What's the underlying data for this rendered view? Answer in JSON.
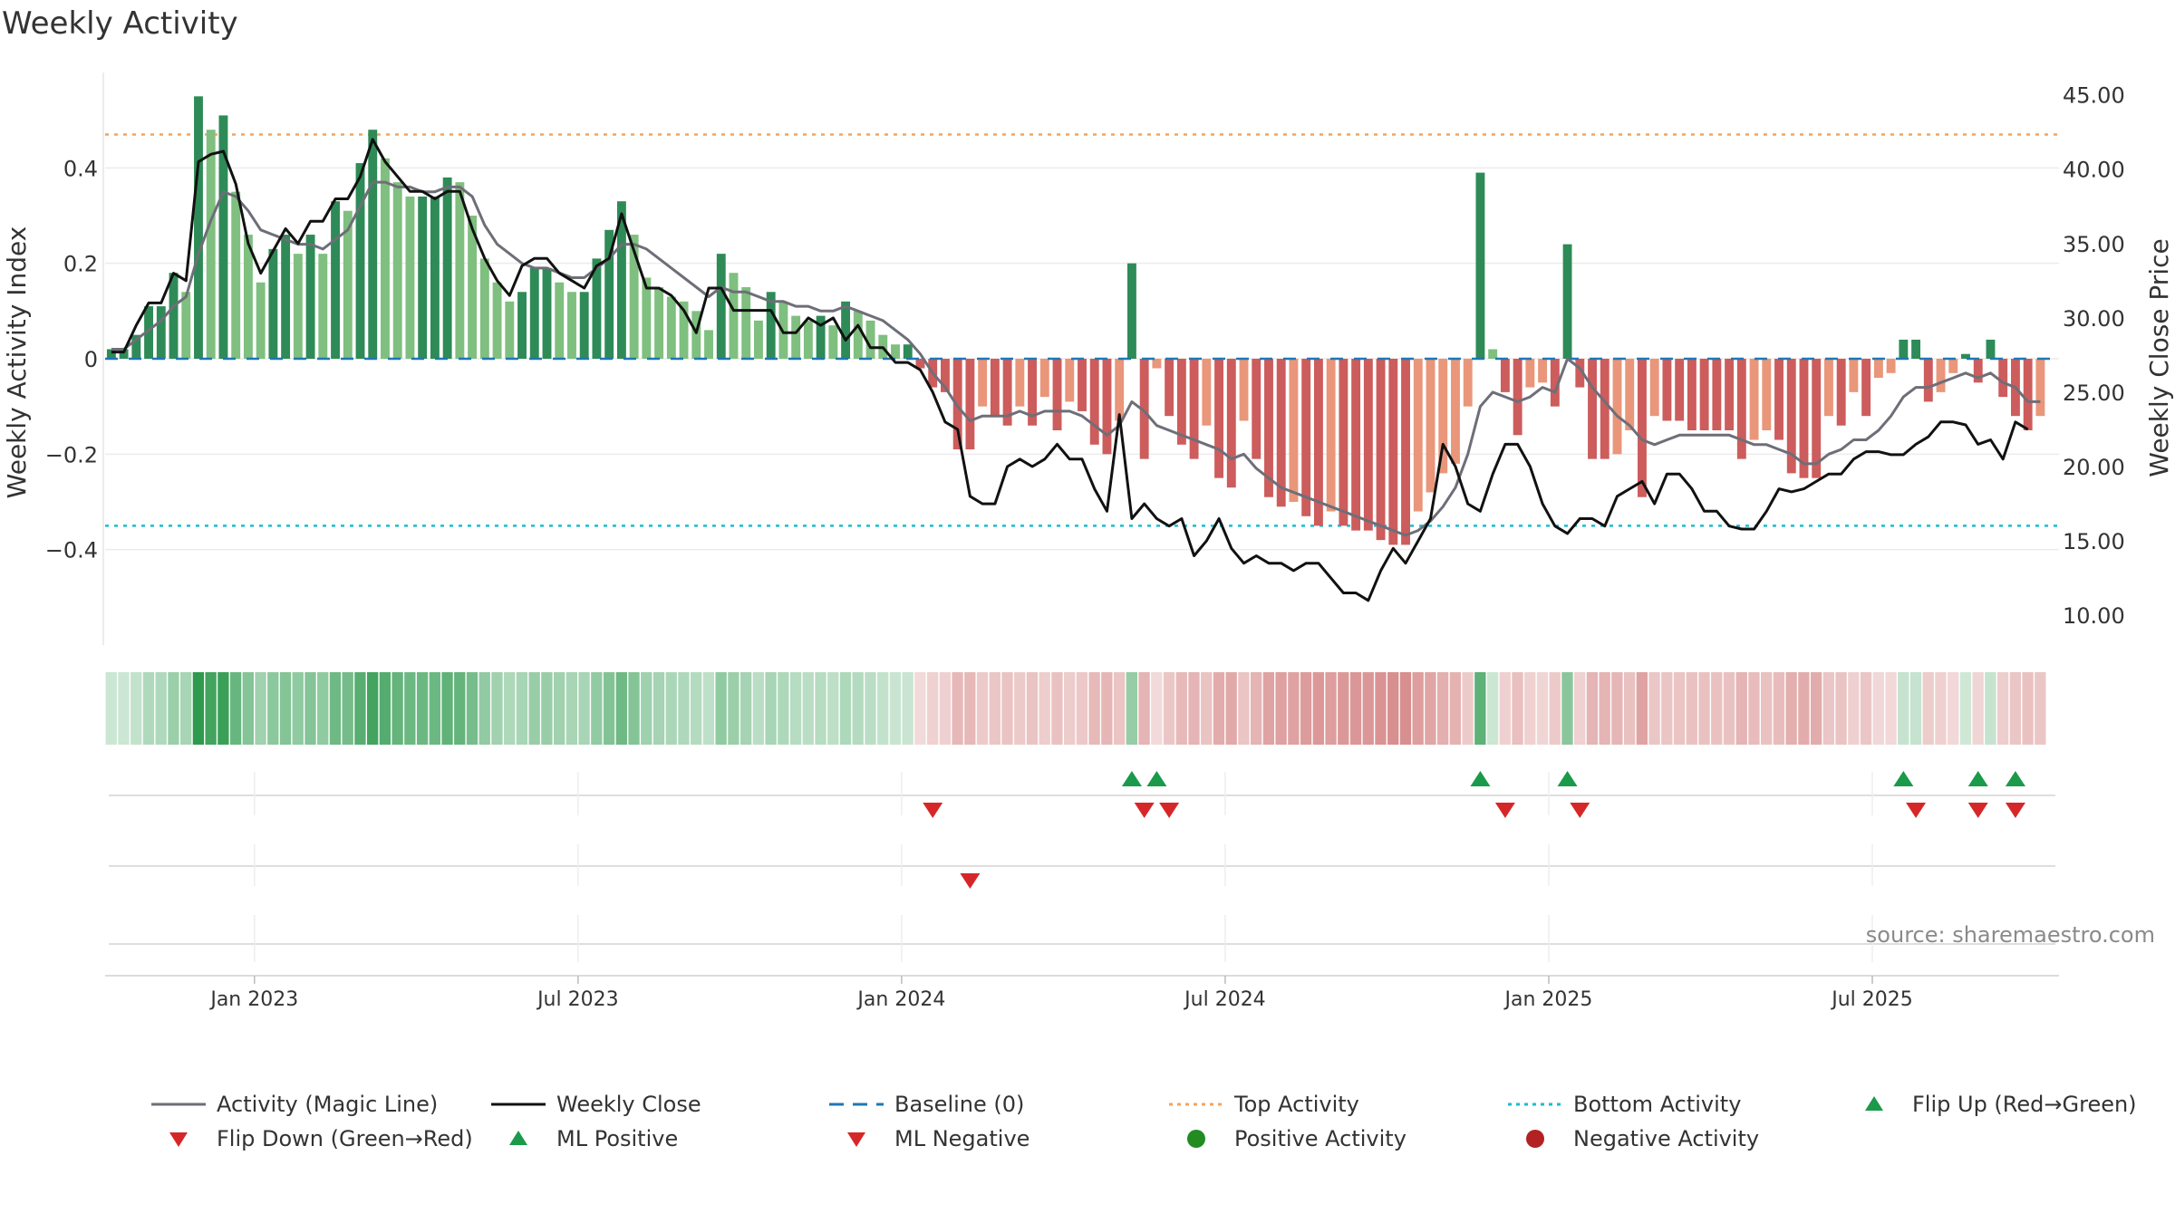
{
  "title": "Weekly Activity",
  "source": "source: sharemaestro.com",
  "colors": {
    "pos_dark": "#2e8b57",
    "pos_light": "#7fbf7f",
    "neg_dark": "#cd5c5c",
    "neg_light": "#e9967a",
    "magic": "#6e6e78",
    "close": "#111111",
    "baseline": "#1f77b4",
    "top": "#f4a460",
    "bottom": "#17becf",
    "flip_up": "#1a9a4a",
    "flip_down": "#d62728",
    "pos_dot": "#228b22",
    "neg_dot": "#b22222"
  },
  "legend": {
    "magic": "Activity (Magic Line)",
    "close": "Weekly Close",
    "baseline": "Baseline (0)",
    "top": "Top Activity",
    "bottom": "Bottom Activity",
    "flip_up": "Flip Up (Red→Green)",
    "flip_down": "Flip Down (Green→Red)",
    "ml_pos": "ML Positive",
    "ml_neg": "ML Negative",
    "pos_act": "Positive Activity",
    "neg_act": "Negative Activity"
  },
  "chart_data": {
    "type": "bar",
    "title": "Weekly Activity",
    "ylabel": "Weekly Activity Index",
    "y2label": "Weekly Close Price",
    "ylim": [
      -0.6,
      0.6
    ],
    "y2lim": [
      8.0,
      46.5
    ],
    "yticks": [
      0.4,
      0.2,
      0,
      -0.2,
      -0.4
    ],
    "ytick_labels": [
      "0.4",
      "0.2",
      "0",
      "−0.2",
      "−0.4"
    ],
    "y2ticks": [
      45,
      40,
      35,
      30,
      25,
      20,
      15,
      10
    ],
    "y2tick_labels": [
      "45.00",
      "40.00",
      "35.00",
      "30.00",
      "25.00",
      "20.00",
      "15.00",
      "10.00"
    ],
    "top_activity": 0.47,
    "bottom_activity": -0.35,
    "baseline": 0,
    "x_start": "2022-10-10",
    "x_end": "2025-10-06",
    "weeks": 157,
    "xticks": [
      {
        "week": 12,
        "label": "Jan 2023"
      },
      {
        "week": 38,
        "label": "Jul 2023"
      },
      {
        "week": 64,
        "label": "Jan 2024"
      },
      {
        "week": 90,
        "label": "Jul 2024"
      },
      {
        "week": 116,
        "label": "Jan 2025"
      },
      {
        "week": 142,
        "label": "Jul 2025"
      }
    ],
    "activity": [
      0.02,
      0.02,
      0.05,
      0.11,
      0.11,
      0.18,
      0.14,
      0.55,
      0.48,
      0.51,
      0.35,
      0.26,
      0.16,
      0.23,
      0.26,
      0.22,
      0.26,
      0.22,
      0.33,
      0.31,
      0.41,
      0.48,
      0.42,
      0.37,
      0.34,
      0.34,
      0.34,
      0.38,
      0.37,
      0.3,
      0.21,
      0.16,
      0.12,
      0.14,
      0.19,
      0.19,
      0.16,
      0.14,
      0.14,
      0.21,
      0.27,
      0.33,
      0.26,
      0.17,
      0.15,
      0.13,
      0.12,
      0.1,
      0.06,
      0.22,
      0.18,
      0.15,
      0.08,
      0.14,
      0.12,
      0.09,
      0.08,
      0.09,
      0.07,
      0.12,
      0.1,
      0.08,
      0.05,
      0.03,
      0.03,
      -0.02,
      -0.06,
      -0.07,
      -0.19,
      -0.19,
      -0.1,
      -0.12,
      -0.14,
      -0.1,
      -0.14,
      -0.08,
      -0.15,
      -0.09,
      -0.11,
      -0.18,
      -0.2,
      -0.13,
      0.2,
      -0.21,
      -0.02,
      -0.12,
      -0.18,
      -0.21,
      -0.14,
      -0.25,
      -0.27,
      -0.13,
      -0.21,
      -0.29,
      -0.31,
      -0.3,
      -0.33,
      -0.35,
      -0.32,
      -0.35,
      -0.36,
      -0.36,
      -0.38,
      -0.39,
      -0.39,
      -0.32,
      -0.28,
      -0.24,
      -0.22,
      -0.1,
      0.39,
      0.02,
      -0.07,
      -0.16,
      -0.06,
      -0.05,
      -0.1,
      0.24,
      -0.06,
      -0.21,
      -0.21,
      -0.2,
      -0.15,
      -0.29,
      -0.12,
      -0.13,
      -0.13,
      -0.15,
      -0.15,
      -0.15,
      -0.15,
      -0.21,
      -0.17,
      -0.15,
      -0.17,
      -0.24,
      -0.25,
      -0.25,
      -0.12,
      -0.14,
      -0.07,
      -0.12,
      -0.04,
      -0.03,
      0.04,
      0.04,
      -0.09,
      -0.07,
      -0.03,
      0.01,
      -0.05,
      0.04,
      -0.08,
      -0.12,
      -0.15,
      -0.12
    ],
    "magic_line": [
      0.02,
      0.02,
      0.04,
      0.06,
      0.08,
      0.11,
      0.13,
      0.22,
      0.29,
      0.35,
      0.34,
      0.31,
      0.27,
      0.26,
      0.25,
      0.24,
      0.24,
      0.23,
      0.25,
      0.27,
      0.32,
      0.37,
      0.37,
      0.36,
      0.36,
      0.35,
      0.35,
      0.36,
      0.36,
      0.34,
      0.28,
      0.24,
      0.22,
      0.2,
      0.19,
      0.19,
      0.18,
      0.17,
      0.17,
      0.19,
      0.21,
      0.24,
      0.24,
      0.23,
      0.21,
      0.19,
      0.17,
      0.15,
      0.13,
      0.15,
      0.14,
      0.14,
      0.13,
      0.12,
      0.12,
      0.11,
      0.11,
      0.1,
      0.1,
      0.11,
      0.1,
      0.09,
      0.08,
      0.06,
      0.04,
      0.01,
      -0.03,
      -0.06,
      -0.1,
      -0.13,
      -0.12,
      -0.12,
      -0.12,
      -0.11,
      -0.12,
      -0.11,
      -0.11,
      -0.11,
      -0.12,
      -0.14,
      -0.16,
      -0.14,
      -0.09,
      -0.11,
      -0.14,
      -0.15,
      -0.16,
      -0.17,
      -0.18,
      -0.19,
      -0.21,
      -0.2,
      -0.23,
      -0.25,
      -0.27,
      -0.28,
      -0.29,
      -0.3,
      -0.31,
      -0.32,
      -0.33,
      -0.34,
      -0.35,
      -0.36,
      -0.37,
      -0.36,
      -0.34,
      -0.31,
      -0.27,
      -0.2,
      -0.1,
      -0.07,
      -0.08,
      -0.09,
      -0.08,
      -0.06,
      -0.07,
      0.0,
      -0.02,
      -0.06,
      -0.09,
      -0.12,
      -0.14,
      -0.17,
      -0.18,
      -0.17,
      -0.16,
      -0.16,
      -0.16,
      -0.16,
      -0.16,
      -0.17,
      -0.18,
      -0.18,
      -0.19,
      -0.2,
      -0.22,
      -0.22,
      -0.2,
      -0.19,
      -0.17,
      -0.17,
      -0.15,
      -0.12,
      -0.08,
      -0.06,
      -0.06,
      -0.05,
      -0.04,
      -0.03,
      -0.04,
      -0.03,
      -0.05,
      -0.06,
      -0.09,
      -0.09
    ],
    "weekly_close": [
      27.7,
      27.7,
      29.5,
      31.0,
      31.0,
      33.0,
      32.5,
      40.5,
      41.0,
      41.2,
      39.0,
      35.0,
      33.0,
      34.5,
      36.0,
      35.0,
      36.5,
      36.5,
      38.0,
      38.0,
      39.5,
      42.0,
      40.5,
      39.5,
      38.5,
      38.5,
      38.0,
      38.5,
      38.5,
      36.0,
      34.0,
      32.5,
      31.5,
      33.5,
      34.0,
      34.0,
      33.0,
      32.5,
      32.0,
      33.5,
      34.0,
      37.0,
      34.5,
      32.0,
      32.0,
      31.5,
      30.5,
      29.0,
      32.0,
      32.0,
      30.5,
      30.5,
      30.5,
      30.5,
      29.0,
      29.0,
      30.0,
      29.5,
      30.0,
      28.5,
      29.5,
      28.0,
      28.0,
      27.0,
      27.0,
      26.5,
      25.0,
      23.0,
      22.5,
      18.0,
      17.5,
      17.5,
      20.0,
      20.5,
      20.0,
      20.5,
      21.5,
      20.5,
      20.5,
      18.5,
      17.0,
      23.5,
      16.5,
      17.5,
      16.5,
      16.0,
      16.5,
      14.0,
      15.0,
      16.5,
      14.5,
      13.5,
      14.0,
      13.5,
      13.5,
      13.0,
      13.5,
      13.5,
      12.5,
      11.5,
      11.5,
      11.0,
      13.0,
      14.5,
      13.5,
      15.0,
      16.5,
      21.5,
      20.0,
      17.5,
      17.0,
      19.5,
      21.5,
      21.5,
      20.0,
      17.5,
      16.0,
      15.5,
      16.5,
      16.5,
      16.0,
      18.0,
      18.5,
      19.0,
      17.5,
      19.5,
      19.5,
      18.5,
      17.0,
      17.0,
      16.0,
      15.8,
      15.8,
      17.0,
      18.5,
      18.3,
      18.5,
      19.0,
      19.5,
      19.5,
      20.5,
      21.0,
      21.0,
      20.8,
      20.8,
      21.5,
      22.0,
      23.0,
      23.0,
      22.8,
      21.5,
      21.8,
      20.5,
      23.0,
      22.5
    ],
    "signals": {
      "row1_flip_up": [
        82,
        84,
        110,
        117,
        144,
        150,
        153
      ],
      "row1_flip_down": [
        66,
        83,
        85,
        112,
        118,
        145,
        150,
        153
      ],
      "row2_ml_neg": [
        69
      ]
    }
  }
}
